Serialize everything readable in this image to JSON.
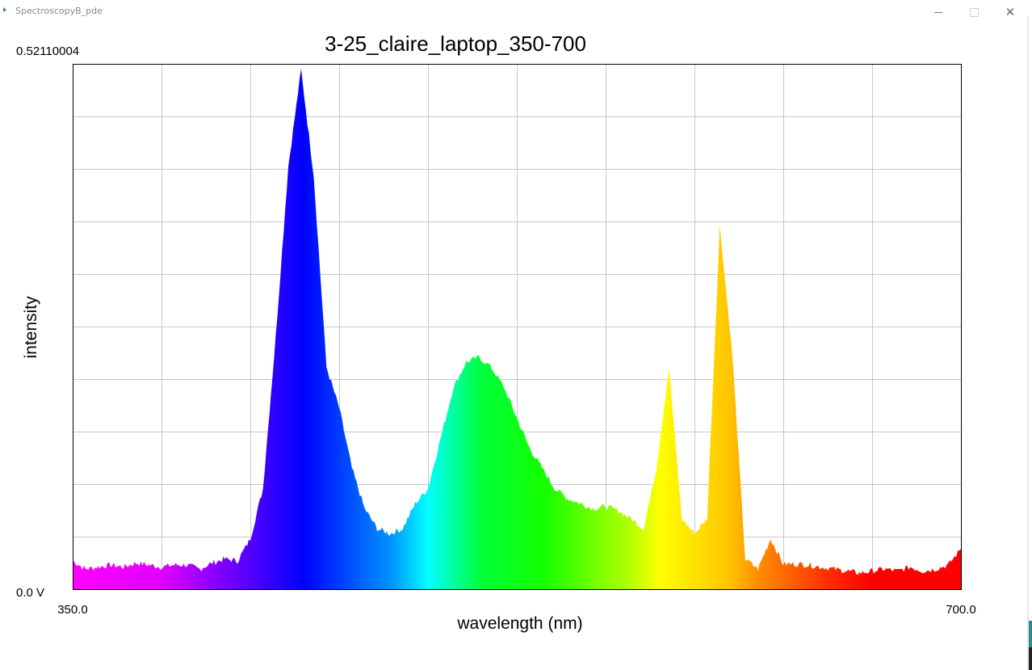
{
  "window": {
    "title": "SpectroscopyB_pde",
    "min_icon": "minimize-icon",
    "max_icon": "maximize-icon",
    "close_icon": "close-icon",
    "close_glyph": "✕"
  },
  "chart_data": {
    "type": "area",
    "title": "3-25_claire_laptop_350-700",
    "xlabel": "wavelength (nm)",
    "ylabel": "intensity",
    "xlim": [
      350.0,
      700.0
    ],
    "ylim": [
      0.0,
      0.52110004
    ],
    "x_tick_labels": [
      "350.0",
      "700.0"
    ],
    "y_tick_labels": [
      "0.0 V",
      "0.52110004"
    ],
    "grid": true,
    "fill": "wavelength-rainbow",
    "x": [
      350,
      355,
      360,
      365,
      370,
      375,
      380,
      385,
      390,
      395,
      400,
      405,
      410,
      415,
      420,
      425,
      430,
      435,
      440,
      445,
      450,
      455,
      460,
      465,
      470,
      475,
      480,
      485,
      490,
      495,
      500,
      505,
      510,
      515,
      520,
      525,
      530,
      535,
      540,
      545,
      550,
      555,
      560,
      565,
      570,
      575,
      580,
      585,
      590,
      595,
      600,
      605,
      610,
      615,
      620,
      625,
      630,
      635,
      640,
      645,
      650,
      655,
      660,
      665,
      670,
      675,
      680,
      685,
      690,
      695,
      700
    ],
    "values": [
      0.028,
      0.02,
      0.022,
      0.024,
      0.022,
      0.026,
      0.024,
      0.022,
      0.024,
      0.024,
      0.02,
      0.026,
      0.03,
      0.028,
      0.05,
      0.1,
      0.25,
      0.42,
      0.515,
      0.41,
      0.22,
      0.18,
      0.12,
      0.08,
      0.06,
      0.055,
      0.06,
      0.085,
      0.1,
      0.15,
      0.2,
      0.225,
      0.23,
      0.22,
      0.2,
      0.17,
      0.14,
      0.12,
      0.1,
      0.09,
      0.085,
      0.08,
      0.082,
      0.078,
      0.07,
      0.06,
      0.12,
      0.22,
      0.07,
      0.055,
      0.07,
      0.36,
      0.23,
      0.03,
      0.02,
      0.05,
      0.025,
      0.025,
      0.024,
      0.022,
      0.02,
      0.018,
      0.016,
      0.018,
      0.02,
      0.018,
      0.022,
      0.018,
      0.02,
      0.024,
      0.04
    ]
  }
}
